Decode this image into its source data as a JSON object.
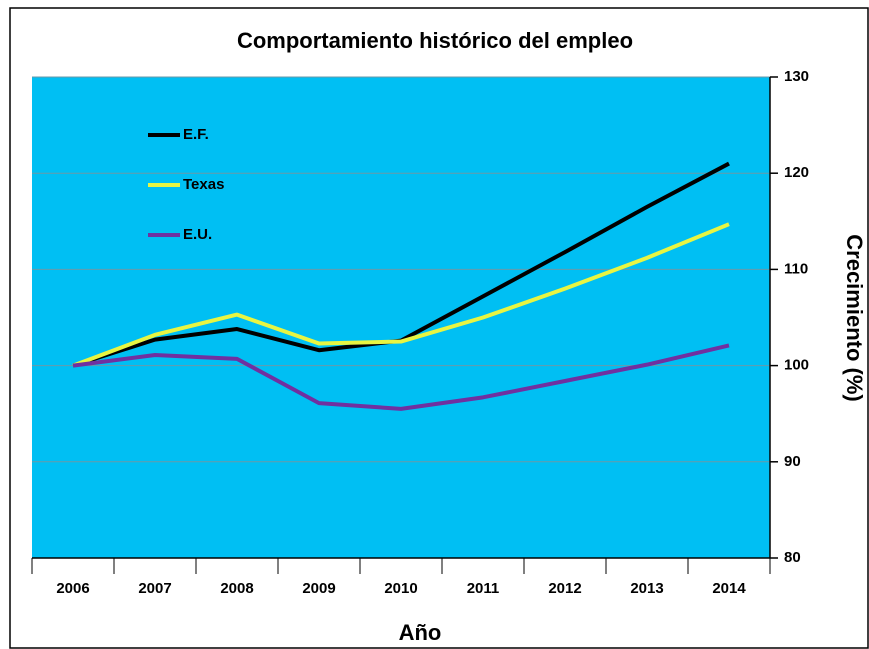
{
  "chart_data": {
    "type": "line",
    "title": "Comportamiento histórico del empleo",
    "x_label": "Año",
    "y_label": "Crecimiento (%)",
    "categories": [
      "2006",
      "2007",
      "2008",
      "2009",
      "2010",
      "2011",
      "2012",
      "2013",
      "2014"
    ],
    "series": [
      {
        "name": "E.F.",
        "color": "#000000",
        "values": [
          100,
          102.7,
          103.8,
          101.6,
          102.6,
          107.2,
          111.8,
          116.5,
          121
        ]
      },
      {
        "name": "Texas",
        "color": "#e8f542",
        "values": [
          100,
          103.2,
          105.3,
          102.3,
          102.5,
          105,
          108,
          111.2,
          114.7
        ]
      },
      {
        "name": "E.U.",
        "color": "#7030a0",
        "values": [
          100,
          101.1,
          100.7,
          96.1,
          95.5,
          96.7,
          98.4,
          100.1,
          102.1
        ]
      }
    ],
    "ylim": [
      80,
      130
    ],
    "yticks": [
      80,
      90,
      100,
      110,
      120,
      130
    ],
    "grid": true,
    "y_axis_side": "right",
    "background": "#00bff3",
    "legend": "upper left"
  }
}
